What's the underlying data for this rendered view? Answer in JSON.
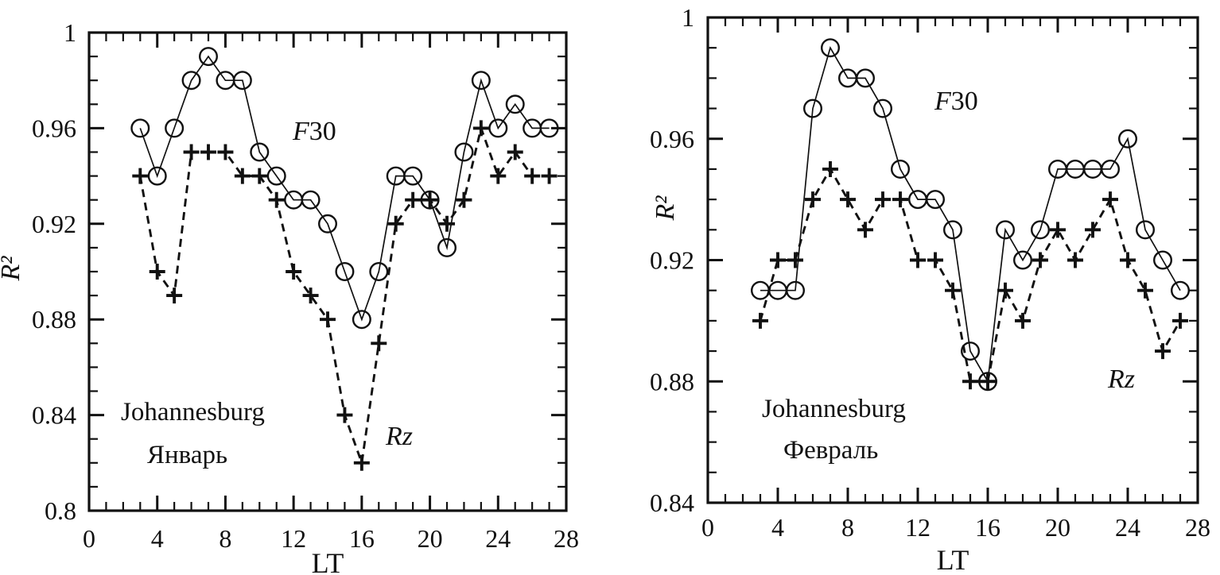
{
  "figure": {
    "background": "#ffffff",
    "ink": "#111111"
  },
  "chart_data": [
    {
      "type": "line",
      "station": "Johannesburg",
      "month": "Январь",
      "xlabel": "LT",
      "ylabel": "R²",
      "xlim": [
        0,
        28
      ],
      "ylim": [
        0.8,
        1.0
      ],
      "x_major_ticks": [
        0,
        4,
        8,
        12,
        16,
        20,
        24,
        28
      ],
      "x_tick_labels": [
        "0",
        "4",
        "8",
        "12",
        "16",
        "20",
        "24",
        "28"
      ],
      "y_major_ticks": [
        0.8,
        0.84,
        0.88,
        0.92,
        0.96,
        1.0
      ],
      "y_tick_labels": [
        "0.8",
        "0.84",
        "0.88",
        "0.92",
        "0.96",
        "1"
      ],
      "x_minor_step": 1,
      "y_minor_step": 0.01,
      "grid": false,
      "legend_position": "inline-annotations",
      "x": [
        3,
        4,
        5,
        6,
        7,
        8,
        9,
        10,
        11,
        12,
        13,
        14,
        15,
        16,
        17,
        18,
        19,
        20,
        21,
        22,
        23,
        24,
        25,
        26,
        27
      ],
      "series": [
        {
          "name": "F30",
          "marker": "circle",
          "line": "solid",
          "values": [
            0.96,
            0.94,
            0.96,
            0.98,
            0.99,
            0.98,
            0.98,
            0.95,
            0.94,
            0.93,
            0.93,
            0.92,
            0.9,
            0.88,
            0.9,
            0.94,
            0.94,
            0.93,
            0.91,
            0.95,
            0.98,
            0.96,
            0.97,
            0.96,
            0.96
          ]
        },
        {
          "name": "Rz",
          "marker": "plus",
          "line": "dashed",
          "values": [
            0.94,
            0.9,
            0.89,
            0.95,
            0.95,
            0.95,
            0.94,
            0.94,
            0.93,
            0.9,
            0.89,
            0.88,
            0.84,
            0.82,
            0.87,
            0.92,
            0.93,
            0.93,
            0.92,
            0.93,
            0.96,
            0.94,
            0.95,
            0.94,
            0.94
          ]
        }
      ]
    },
    {
      "type": "line",
      "station": "Johannesburg",
      "month": "Февраль",
      "xlabel": "LT",
      "ylabel": "R²",
      "xlim": [
        0,
        28
      ],
      "ylim": [
        0.84,
        1.0
      ],
      "x_major_ticks": [
        0,
        4,
        8,
        12,
        16,
        20,
        24,
        28
      ],
      "x_tick_labels": [
        "0",
        "4",
        "8",
        "12",
        "16",
        "20",
        "24",
        "28"
      ],
      "y_major_ticks": [
        0.84,
        0.88,
        0.92,
        0.96,
        1.0
      ],
      "y_tick_labels": [
        "0.84",
        "0.88",
        "0.92",
        "0.96",
        "1"
      ],
      "x_minor_step": 1,
      "y_minor_step": 0.01,
      "grid": false,
      "legend_position": "inline-annotations",
      "x": [
        3,
        4,
        5,
        6,
        7,
        8,
        9,
        10,
        11,
        12,
        13,
        14,
        15,
        16,
        17,
        18,
        19,
        20,
        21,
        22,
        23,
        24,
        25,
        26,
        27
      ],
      "series": [
        {
          "name": "F30",
          "marker": "circle",
          "line": "solid",
          "values": [
            0.91,
            0.91,
            0.91,
            0.97,
            0.99,
            0.98,
            0.98,
            0.97,
            0.95,
            0.94,
            0.94,
            0.93,
            0.89,
            0.88,
            0.93,
            0.92,
            0.93,
            0.95,
            0.95,
            0.95,
            0.95,
            0.96,
            0.93,
            0.92,
            0.91
          ]
        },
        {
          "name": "Rz",
          "marker": "plus",
          "line": "dashed",
          "values": [
            0.9,
            0.92,
            0.92,
            0.94,
            0.95,
            0.94,
            0.93,
            0.94,
            0.94,
            0.92,
            0.92,
            0.91,
            0.88,
            0.88,
            0.91,
            0.9,
            0.92,
            0.93,
            0.92,
            0.93,
            0.94,
            0.92,
            0.91,
            0.89,
            0.9
          ]
        }
      ]
    }
  ]
}
